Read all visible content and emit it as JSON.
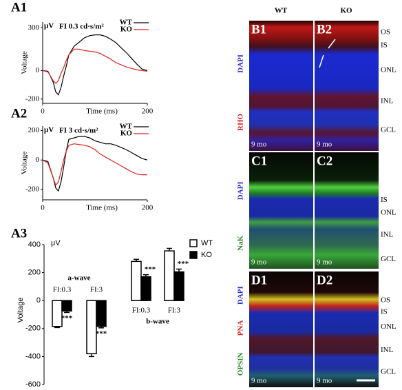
{
  "chart_data": [
    {
      "type": "line",
      "panel": "A1",
      "title": "FI 0.3 cd·s/m²",
      "y_unit": "μV",
      "x_label": "Time (ms)",
      "y_label": "Voltage",
      "x": [
        0,
        10,
        20,
        25,
        30,
        35,
        40,
        45,
        50,
        60,
        70,
        80,
        90,
        100,
        110,
        120,
        130,
        140,
        150,
        160,
        170,
        180,
        190,
        200
      ],
      "series": [
        {
          "name": "WT",
          "color": "#000000",
          "values": [
            0,
            -5,
            -80,
            -150,
            -170,
            -120,
            -40,
            30,
            110,
            170,
            200,
            230,
            245,
            250,
            250,
            240,
            220,
            195,
            160,
            125,
            85,
            45,
            10,
            0
          ]
        },
        {
          "name": "KO",
          "color": "#e02020",
          "values": [
            0,
            -10,
            -70,
            -90,
            -70,
            -20,
            20,
            70,
            110,
            150,
            150,
            140,
            135,
            130,
            120,
            100,
            80,
            55,
            40,
            25,
            15,
            5,
            0,
            -5
          ]
        }
      ],
      "xlim": [
        0,
        200
      ],
      "ylim": [
        -230,
        340
      ],
      "xticks": [
        0,
        200
      ],
      "yticks": [
        300,
        0,
        -200
      ]
    },
    {
      "type": "line",
      "panel": "A2",
      "title": "FI 3 cd·s/m²",
      "y_unit": "μV",
      "x_label": "Time (ms)",
      "y_label": "Voltage",
      "x": [
        0,
        10,
        20,
        25,
        30,
        35,
        40,
        45,
        50,
        60,
        70,
        80,
        90,
        100,
        110,
        120,
        130,
        140,
        150,
        160,
        170,
        180,
        190,
        200
      ],
      "series": [
        {
          "name": "WT",
          "color": "#000000",
          "values": [
            0,
            -10,
            -120,
            -190,
            -210,
            -150,
            -50,
            60,
            140,
            150,
            160,
            160,
            150,
            130,
            120,
            110,
            110,
            100,
            85,
            70,
            50,
            30,
            10,
            0
          ]
        },
        {
          "name": "KO",
          "color": "#e02020",
          "values": [
            0,
            -20,
            -120,
            -170,
            -150,
            -80,
            0,
            60,
            100,
            110,
            105,
            100,
            90,
            70,
            40,
            20,
            0,
            -20,
            -40,
            -60,
            -80,
            -95,
            -100,
            -100
          ]
        }
      ],
      "xlim": [
        0,
        200
      ],
      "ylim": [
        -270,
        230
      ],
      "xticks": [
        0,
        200
      ],
      "yticks": [
        200,
        0,
        -200
      ]
    },
    {
      "type": "bar",
      "panel": "A3",
      "y_unit": "μV",
      "y_label": "Voltage",
      "categories": [
        "FI:0.3",
        "FI:3",
        "FI:0.3",
        "FI:3"
      ],
      "groups": [
        "a-wave",
        "b-wave"
      ],
      "series": [
        {
          "name": "WT",
          "color": "#ffffff",
          "values": [
            -185,
            -380,
            280,
            355
          ],
          "errors": [
            8,
            20,
            15,
            18
          ]
        },
        {
          "name": "KO",
          "color": "#000000",
          "values": [
            -75,
            -185,
            170,
            205
          ],
          "errors": [
            10,
            10,
            15,
            20
          ],
          "annotations": [
            "***",
            "***",
            "***",
            "***"
          ]
        }
      ],
      "ylim": [
        -600,
        400
      ],
      "yticks": [
        400,
        200,
        0,
        -200,
        -400,
        -600
      ]
    }
  ],
  "images": {
    "columns": [
      "WT",
      "KO"
    ],
    "rows": [
      {
        "panels": [
          "B1",
          "B2"
        ],
        "stains": [
          {
            "name": "DAPI",
            "color": "#2b2bd6"
          },
          {
            "name": "RHO",
            "color": "#d42020"
          }
        ],
        "layers": [
          "OS",
          "IS",
          "ONL",
          "INL",
          "GCL"
        ],
        "age": [
          "9 mo",
          "9 mo"
        ]
      },
      {
        "panels": [
          "C1",
          "C2"
        ],
        "stains": [
          {
            "name": "DAPI",
            "color": "#2b2bd6"
          },
          {
            "name": "NaK",
            "color": "#2a8a2a"
          }
        ],
        "layers": [
          "IS",
          "ONL",
          "INL",
          "GCL"
        ],
        "age": [
          "9 mo",
          "9 mo"
        ]
      },
      {
        "panels": [
          "D1",
          "D2"
        ],
        "stains": [
          {
            "name": "DAPI",
            "color": "#2b2bd6"
          },
          {
            "name": "PNA",
            "color": "#d42020"
          },
          {
            "name": "OPSIN",
            "color": "#2a8a2a"
          }
        ],
        "layers": [
          "OS",
          "IS",
          "ONL",
          "INL",
          "GCL"
        ],
        "age": [
          "9 mo",
          "9 mo"
        ]
      }
    ]
  }
}
